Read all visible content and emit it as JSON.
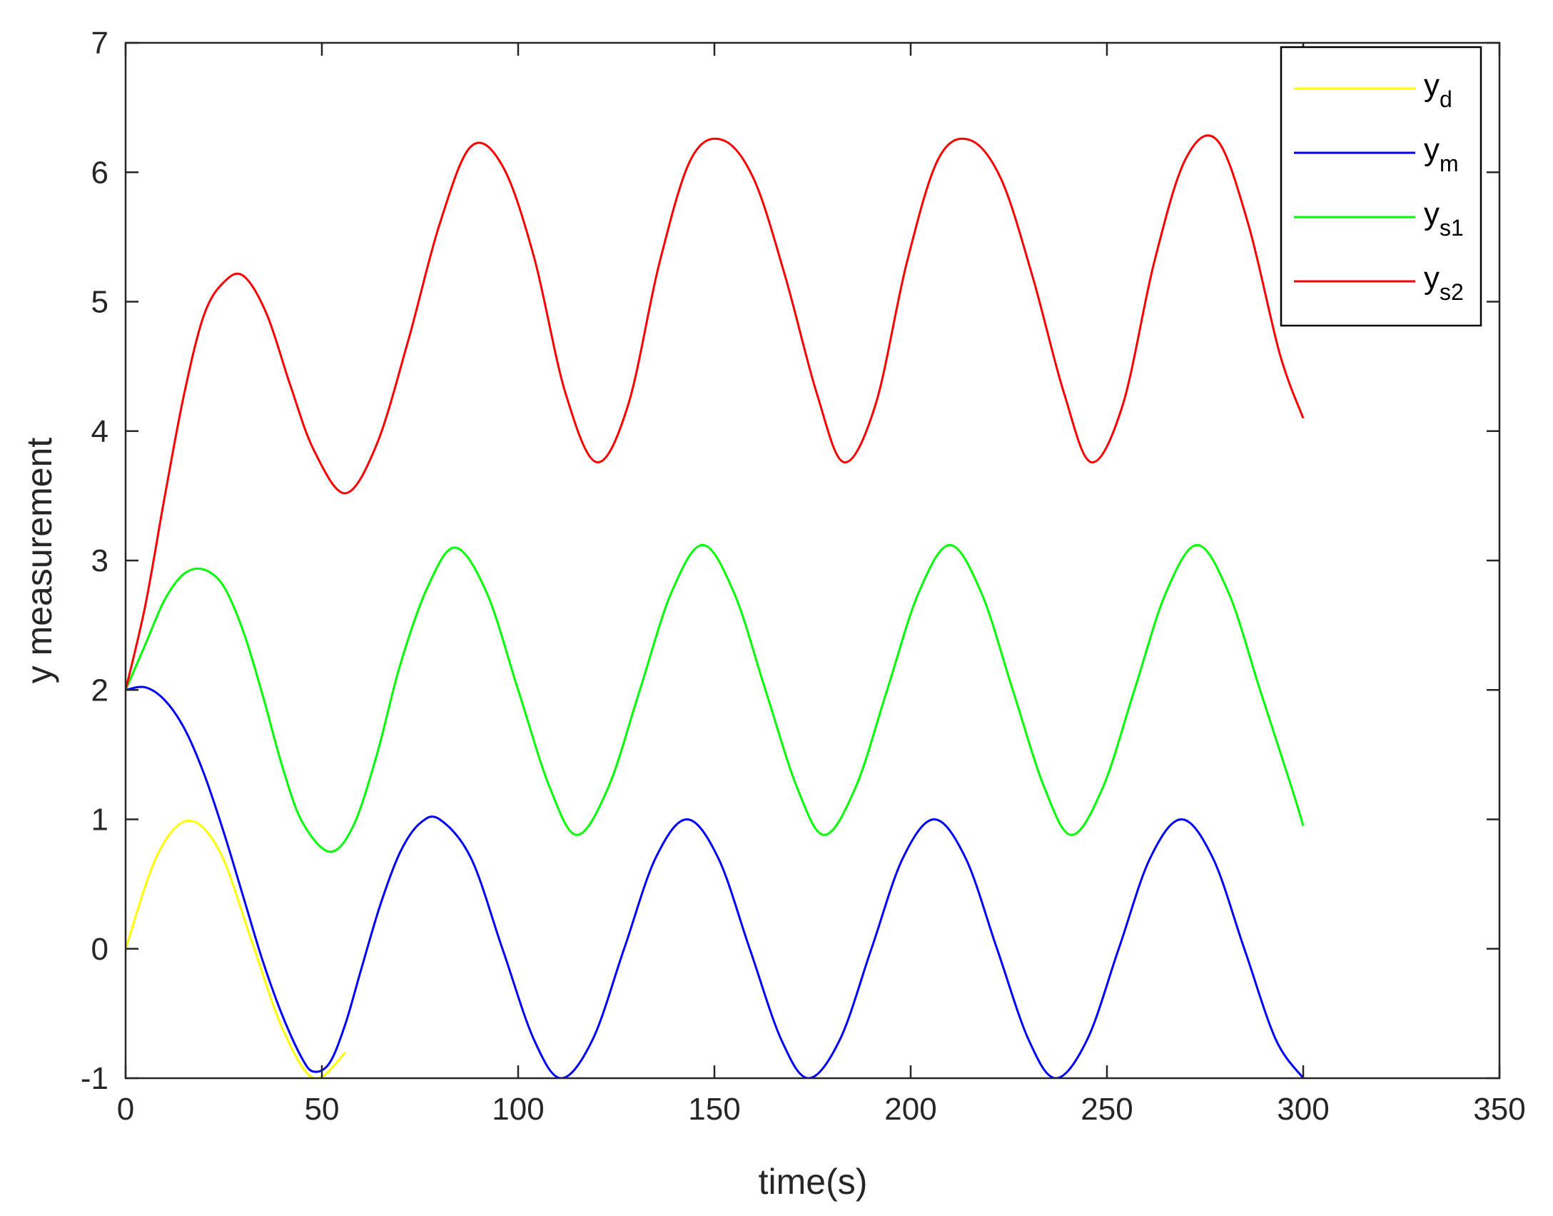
{
  "chart_data": {
    "type": "line",
    "xlabel": "time(s)",
    "ylabel": "y measurement",
    "xlim": [
      0,
      350
    ],
    "ylim": [
      -1,
      7
    ],
    "xticks": [
      "0",
      "50",
      "100",
      "150",
      "200",
      "250",
      "300",
      "350"
    ],
    "yticks": [
      "-1",
      "0",
      "1",
      "2",
      "3",
      "4",
      "5",
      "6",
      "7"
    ],
    "grid": false,
    "legend_position": "top-right",
    "series": [
      {
        "name": "y_d",
        "label_main": "y",
        "label_sub": "d",
        "color": "#ffff00",
        "x": [
          0,
          8,
          16,
          24,
          32,
          40,
          48,
          56
        ],
        "y": [
          0.0,
          0.72,
          0.99,
          0.75,
          0.07,
          -0.62,
          -1.0,
          -0.8
        ]
      },
      {
        "name": "y_m",
        "label_main": "y",
        "label_sub": "m",
        "color": "#0000ff",
        "x": [
          0,
          5,
          10,
          15,
          20,
          25,
          30,
          35,
          40,
          45,
          48,
          52,
          56,
          60,
          65,
          70,
          75,
          80,
          88,
          96,
          104,
          111,
          119,
          127,
          135,
          143,
          151,
          159,
          167,
          174,
          182,
          190,
          198,
          206,
          214,
          222,
          230,
          237,
          245,
          253,
          261,
          269,
          277,
          285,
          293,
          300
        ],
        "y": [
          2.0,
          2.02,
          1.92,
          1.7,
          1.35,
          0.9,
          0.4,
          -0.1,
          -0.52,
          -0.85,
          -0.95,
          -0.88,
          -0.58,
          -0.16,
          0.35,
          0.75,
          0.97,
          1.0,
          0.7,
          0.0,
          -0.7,
          -1.0,
          -0.7,
          0.0,
          0.7,
          1.0,
          0.7,
          0.0,
          -0.7,
          -1.0,
          -0.7,
          0.0,
          0.7,
          1.0,
          0.7,
          0.0,
          -0.7,
          -1.0,
          -0.7,
          0.0,
          0.7,
          1.0,
          0.7,
          0.0,
          -0.7,
          -1.0
        ]
      },
      {
        "name": "y_s1",
        "label_main": "y",
        "label_sub": "s1",
        "color": "#00ff00",
        "x": [
          0,
          5,
          10,
          15,
          20,
          25,
          30,
          35,
          40,
          45,
          52,
          58,
          64,
          70,
          77,
          84,
          92,
          100,
          108,
          115,
          123,
          131,
          139,
          147,
          155,
          163,
          171,
          178,
          186,
          194,
          202,
          210,
          218,
          226,
          234,
          241,
          249,
          257,
          265,
          273,
          281,
          289,
          297,
          300
        ],
        "y": [
          2.0,
          2.35,
          2.7,
          2.9,
          2.93,
          2.8,
          2.45,
          1.95,
          1.4,
          0.98,
          0.75,
          0.95,
          1.5,
          2.2,
          2.8,
          3.1,
          2.75,
          2.0,
          1.25,
          0.88,
          1.25,
          2.0,
          2.75,
          3.12,
          2.75,
          2.0,
          1.25,
          0.88,
          1.25,
          2.0,
          2.75,
          3.12,
          2.75,
          2.0,
          1.25,
          0.88,
          1.25,
          2.0,
          2.75,
          3.12,
          2.75,
          2.0,
          1.25,
          0.95
        ]
      },
      {
        "name": "y_s2",
        "label_main": "y",
        "label_sub": "s2",
        "color": "#ff0000",
        "x": [
          0,
          5,
          10,
          15,
          20,
          25,
          30,
          36,
          42,
          48,
          56,
          64,
          72,
          80,
          88,
          96,
          104,
          112,
          120,
          128,
          136,
          144,
          152,
          160,
          168,
          176,
          183,
          191,
          199,
          207,
          215,
          223,
          231,
          239,
          246,
          254,
          262,
          270,
          278,
          286,
          294,
          300
        ],
        "y": [
          2.0,
          2.65,
          3.5,
          4.3,
          4.9,
          5.15,
          5.2,
          4.9,
          4.35,
          3.85,
          3.52,
          3.9,
          4.7,
          5.6,
          6.2,
          6.05,
          5.35,
          4.3,
          3.76,
          4.2,
          5.3,
          6.1,
          6.25,
          5.95,
          5.2,
          4.3,
          3.76,
          4.2,
          5.3,
          6.1,
          6.25,
          5.95,
          5.2,
          4.3,
          3.76,
          4.2,
          5.3,
          6.1,
          6.25,
          5.6,
          4.6,
          4.1
        ]
      }
    ]
  }
}
